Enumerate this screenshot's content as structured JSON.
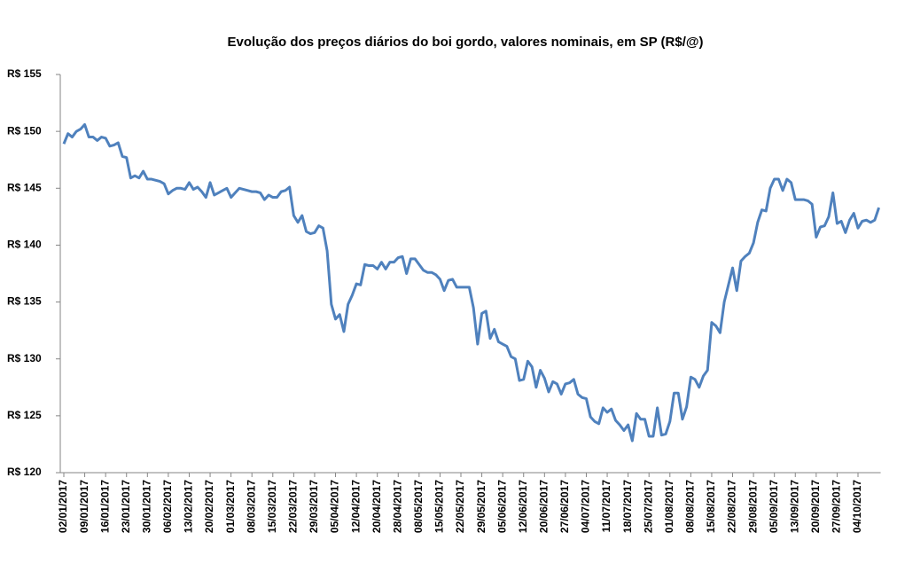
{
  "chart_data": {
    "type": "line",
    "title": "Evolução dos preços diários do boi gordo, valores nominais, em SP (R$/@)",
    "categories": [
      "02/01/2017",
      null,
      null,
      null,
      null,
      "09/01/2017",
      null,
      null,
      null,
      null,
      "16/01/2017",
      null,
      null,
      null,
      null,
      "23/01/2017",
      null,
      null,
      null,
      null,
      "30/01/2017",
      null,
      null,
      null,
      null,
      "06/02/2017",
      null,
      null,
      null,
      null,
      "13/02/2017",
      null,
      null,
      null,
      null,
      "20/02/2017",
      null,
      null,
      null,
      null,
      "01/03/2017",
      null,
      null,
      null,
      null,
      "08/03/2017",
      null,
      null,
      null,
      null,
      "15/03/2017",
      null,
      null,
      null,
      null,
      "22/03/2017",
      null,
      null,
      null,
      null,
      "29/03/2017",
      null,
      null,
      null,
      null,
      "05/04/2017",
      null,
      null,
      null,
      null,
      "12/04/2017",
      null,
      null,
      null,
      null,
      "20/04/2017",
      null,
      null,
      null,
      null,
      "28/04/2017",
      null,
      null,
      null,
      null,
      "08/05/2017",
      null,
      null,
      null,
      null,
      "15/05/2017",
      null,
      null,
      null,
      null,
      "22/05/2017",
      null,
      null,
      null,
      null,
      "29/05/2017",
      null,
      null,
      null,
      null,
      "05/06/2017",
      null,
      null,
      null,
      null,
      "12/06/2017",
      null,
      null,
      null,
      null,
      "20/06/2017",
      null,
      null,
      null,
      null,
      "27/06/2017",
      null,
      null,
      null,
      null,
      "04/07/2017",
      null,
      null,
      null,
      null,
      "11/07/2017",
      null,
      null,
      null,
      null,
      "18/07/2017",
      null,
      null,
      null,
      null,
      "25/07/2017",
      null,
      null,
      null,
      null,
      "01/08/2017",
      null,
      null,
      null,
      null,
      "08/08/2017",
      null,
      null,
      null,
      null,
      "15/08/2017",
      null,
      null,
      null,
      null,
      "22/08/2017",
      null,
      null,
      null,
      null,
      "29/08/2017",
      null,
      null,
      null,
      null,
      "05/09/2017",
      null,
      null,
      null,
      null,
      "13/09/2017",
      null,
      null,
      null,
      null,
      "20/09/2017",
      null,
      null,
      null,
      null,
      "27/09/2017",
      null,
      null,
      null,
      null,
      "04/10/2017",
      null,
      null,
      null,
      null,
      null
    ],
    "values": [
      148.9,
      149.8,
      149.5,
      150.0,
      150.2,
      150.6,
      149.5,
      149.5,
      149.2,
      149.5,
      149.4,
      148.7,
      148.8,
      149.0,
      147.8,
      147.7,
      145.9,
      146.1,
      145.9,
      146.5,
      145.8,
      145.8,
      145.7,
      145.6,
      145.4,
      144.5,
      144.8,
      145.0,
      145.0,
      144.9,
      145.5,
      144.9,
      145.1,
      144.7,
      144.2,
      145.5,
      144.4,
      144.6,
      144.8,
      145.0,
      144.2,
      144.6,
      145.0,
      144.9,
      144.8,
      144.7,
      144.7,
      144.6,
      144.0,
      144.4,
      144.2,
      144.2,
      144.7,
      144.8,
      145.1,
      142.6,
      142.0,
      142.6,
      141.2,
      141.0,
      141.1,
      141.7,
      141.5,
      139.5,
      134.8,
      133.5,
      133.9,
      132.4,
      134.8,
      135.6,
      136.6,
      136.5,
      138.3,
      138.2,
      138.2,
      137.9,
      138.5,
      137.9,
      138.5,
      138.5,
      138.9,
      139.0,
      137.5,
      138.8,
      138.8,
      138.3,
      137.8,
      137.6,
      137.6,
      137.4,
      137.0,
      136.0,
      136.9,
      137.0,
      136.3,
      136.3,
      136.3,
      136.3,
      134.5,
      131.3,
      134.0,
      134.2,
      131.8,
      132.6,
      131.5,
      131.3,
      131.1,
      130.2,
      130.0,
      128.1,
      128.2,
      129.8,
      129.3,
      127.5,
      129.0,
      128.3,
      127.1,
      128.0,
      127.8,
      126.9,
      127.8,
      127.9,
      128.2,
      126.9,
      126.6,
      126.5,
      124.9,
      124.5,
      124.3,
      125.7,
      125.3,
      125.6,
      124.6,
      124.2,
      123.7,
      124.2,
      122.8,
      125.2,
      124.7,
      124.7,
      123.2,
      123.2,
      125.7,
      123.3,
      123.4,
      124.5,
      127.0,
      127.0,
      124.7,
      125.8,
      128.4,
      128.2,
      127.5,
      128.5,
      129.0,
      133.2,
      132.9,
      132.3,
      135.0,
      136.5,
      138.0,
      136.0,
      138.6,
      139.0,
      139.3,
      140.2,
      142.0,
      143.1,
      143.0,
      145.0,
      145.8,
      145.8,
      144.8,
      145.8,
      145.5,
      144.0,
      144.0,
      144.0,
      143.9,
      143.6,
      140.7,
      141.6,
      141.7,
      142.5,
      144.6,
      141.9,
      142.1,
      141.1,
      142.2,
      142.8,
      141.5,
      142.1,
      142.2,
      142.0,
      142.2,
      143.3
    ],
    "color": "#4f81bd",
    "ylim": [
      120,
      155
    ],
    "yticks": [
      {
        "value": 120,
        "label": "R$ 120"
      },
      {
        "value": 125,
        "label": "R$ 125"
      },
      {
        "value": 130,
        "label": "R$ 130"
      },
      {
        "value": 135,
        "label": "R$ 135"
      },
      {
        "value": 140,
        "label": "R$ 140"
      },
      {
        "value": 145,
        "label": "R$ 145"
      },
      {
        "value": 150,
        "label": "R$ 150"
      },
      {
        "value": 155,
        "label": "R$ 155"
      }
    ],
    "grid": false
  }
}
